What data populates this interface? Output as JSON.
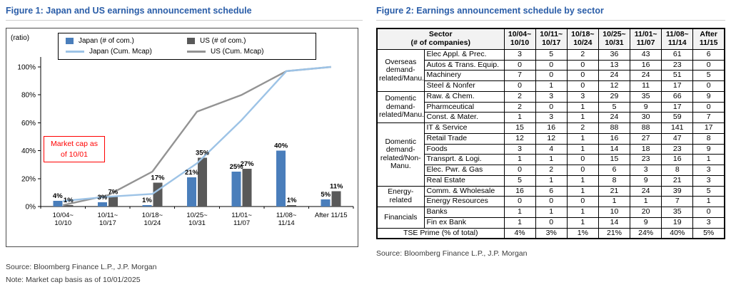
{
  "figure1": {
    "title": "Figure 1: Japan and US earnings announcement schedule",
    "annotation": {
      "line1": "Market cap as",
      "line2": "of  10/01"
    },
    "source": "Source: Bloomberg Finance L.P., J.P. Morgan",
    "note": "Note: Market cap basis as of 10/01/2025"
  },
  "figure2": {
    "title": "Figure 2: Earnings announcement schedule by sector",
    "source": "Source: Bloomberg Finance L.P., J.P. Morgan"
  },
  "chart_data": [
    {
      "type": "bar",
      "title": "Japan and US earnings announcement schedule",
      "ylabel": "(ratio)",
      "ylim": [
        0,
        100
      ],
      "yticks": [
        "0%",
        "20%",
        "40%",
        "60%",
        "80%",
        "100%"
      ],
      "legend_position": "top-center",
      "grid": false,
      "categories": [
        {
          "top": "10/04~",
          "bottom": "10/10"
        },
        {
          "top": "10/11~",
          "bottom": "10/17"
        },
        {
          "top": "10/18~",
          "bottom": "10/24"
        },
        {
          "top": "10/25~",
          "bottom": "10/31"
        },
        {
          "top": "11/01~",
          "bottom": "11/07"
        },
        {
          "top": "11/08~",
          "bottom": "11/14"
        },
        {
          "top": "After 11/15",
          "bottom": ""
        }
      ],
      "series": [
        {
          "name": "Japan (# of com.)",
          "kind": "bar",
          "color": "#4a7ebb",
          "values": [
            4,
            3,
            1,
            21,
            25,
            40,
            5
          ]
        },
        {
          "name": "US (# of com.)",
          "kind": "bar",
          "color": "#595959",
          "values": [
            1,
            7,
            17,
            35,
            27,
            1,
            11
          ]
        },
        {
          "name": "Japan (Cum. Mcap)",
          "kind": "line",
          "color": "#9dc3e6",
          "values": [
            4,
            7,
            9,
            31,
            62,
            97,
            100
          ]
        },
        {
          "name": "US (Cum. Mcap)",
          "kind": "line",
          "color": "#939393",
          "values": [
            1,
            8,
            25,
            68,
            80,
            97,
            100
          ]
        }
      ]
    },
    {
      "type": "table",
      "title": "Earnings announcement schedule by sector",
      "col_headers": [
        [
          "Sector",
          "(# of companies)"
        ],
        [
          "10/04~",
          "10/10"
        ],
        [
          "10/11~",
          "10/17"
        ],
        [
          "10/18~",
          "10/24"
        ],
        [
          "10/25~",
          "10/31"
        ],
        [
          "11/01~",
          "11/07"
        ],
        [
          "11/08~",
          "11/14"
        ],
        [
          "After",
          "11/15"
        ]
      ],
      "groups": [
        {
          "name": "Overseas demand-related/Manu.",
          "rows": [
            {
              "sector": "Elec Appl. & Prec.",
              "values": [
                3,
                5,
                2,
                36,
                43,
                61,
                6
              ]
            },
            {
              "sector": "Autos & Trans. Equip.",
              "values": [
                0,
                0,
                0,
                13,
                16,
                23,
                0
              ]
            },
            {
              "sector": "Machinery",
              "values": [
                7,
                0,
                0,
                24,
                24,
                51,
                5
              ]
            },
            {
              "sector": "Steel & Nonfer",
              "values": [
                0,
                1,
                0,
                12,
                11,
                17,
                0
              ]
            }
          ]
        },
        {
          "name": "Domentic demand-related/Manu.",
          "rows": [
            {
              "sector": "Raw. & Chem.",
              "values": [
                2,
                3,
                3,
                29,
                35,
                66,
                9
              ]
            },
            {
              "sector": "Pharmceutical",
              "values": [
                2,
                0,
                1,
                5,
                9,
                17,
                0
              ]
            },
            {
              "sector": "Const. & Mater.",
              "values": [
                1,
                3,
                1,
                24,
                30,
                59,
                7
              ]
            }
          ]
        },
        {
          "name": "Domentic demand-related/Non-Manu.",
          "rows": [
            {
              "sector": "IT & Service",
              "values": [
                15,
                16,
                2,
                88,
                88,
                141,
                17
              ]
            },
            {
              "sector": "Retail Trade",
              "values": [
                12,
                12,
                1,
                16,
                27,
                47,
                8
              ]
            },
            {
              "sector": "Foods",
              "values": [
                3,
                4,
                1,
                14,
                18,
                23,
                9
              ]
            },
            {
              "sector": "Transprt. & Logi.",
              "values": [
                1,
                1,
                0,
                15,
                23,
                16,
                1
              ]
            },
            {
              "sector": "Elec. Pwr. & Gas",
              "values": [
                0,
                2,
                0,
                6,
                3,
                8,
                3
              ]
            },
            {
              "sector": "Real Estate",
              "values": [
                5,
                1,
                1,
                8,
                9,
                21,
                3
              ]
            }
          ]
        },
        {
          "name": "Energy-related",
          "rows": [
            {
              "sector": "Comm. & Wholesale",
              "values": [
                16,
                6,
                1,
                21,
                24,
                39,
                5
              ]
            },
            {
              "sector": "Energy Resources",
              "values": [
                0,
                0,
                0,
                1,
                1,
                7,
                1
              ]
            }
          ]
        },
        {
          "name": "Financials",
          "rows": [
            {
              "sector": "Banks",
              "values": [
                1,
                1,
                1,
                10,
                20,
                35,
                0
              ]
            },
            {
              "sector": "Fin ex Bank",
              "values": [
                1,
                0,
                1,
                14,
                9,
                19,
                3
              ]
            }
          ]
        }
      ],
      "footer": {
        "label": "TSE Prime (% of total)",
        "values": [
          "4%",
          "3%",
          "1%",
          "21%",
          "24%",
          "40%",
          "5%"
        ]
      }
    }
  ]
}
